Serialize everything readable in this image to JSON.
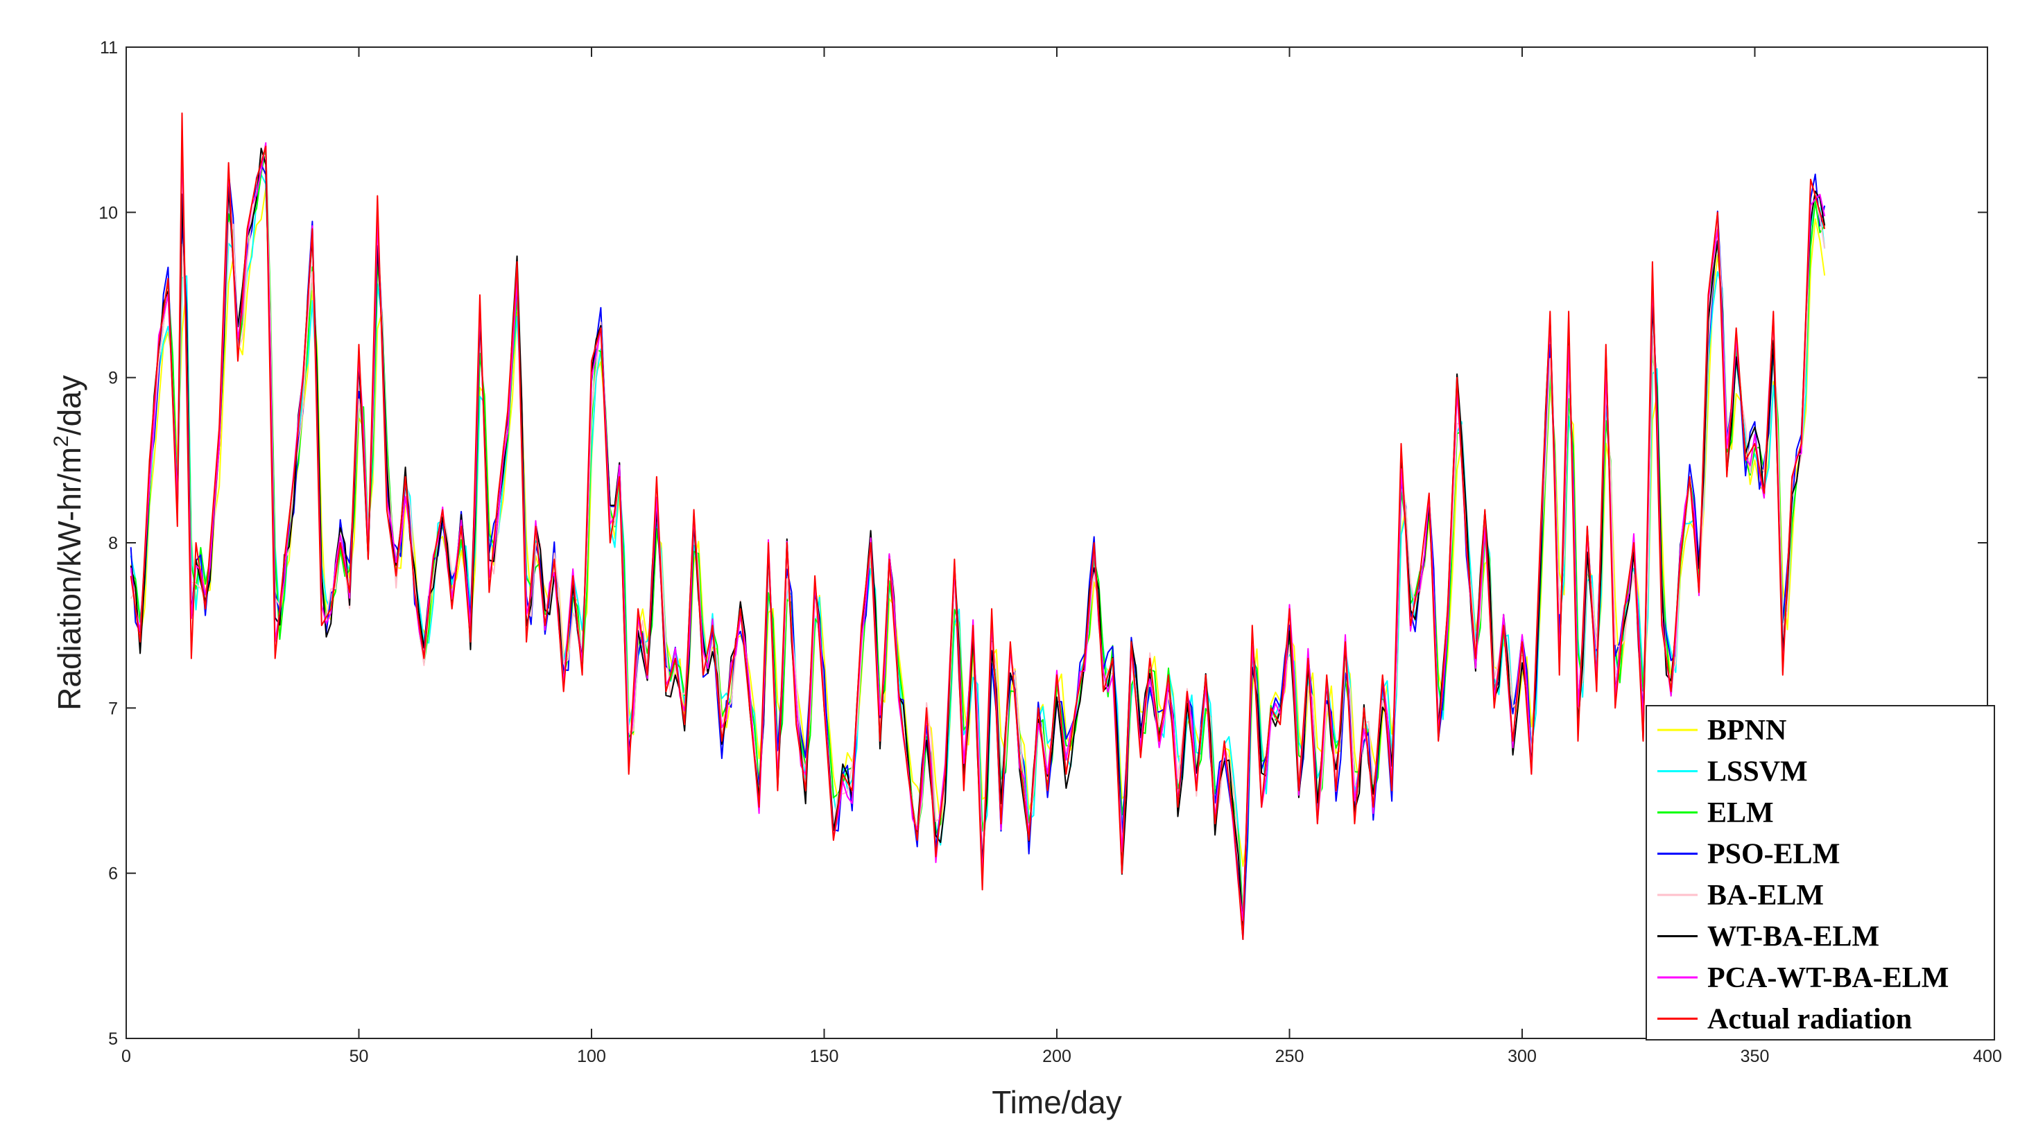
{
  "chart_data": {
    "type": "line",
    "title": "",
    "xlabel": "Time/day",
    "ylabel_main": "Radiation/kW-hr/m",
    "ylabel_sup": "2",
    "ylabel_tail": "/day",
    "xlim": [
      0,
      400
    ],
    "ylim": [
      5,
      11
    ],
    "xticks": [
      0,
      50,
      100,
      150,
      200,
      250,
      300,
      350,
      400
    ],
    "yticks": [
      5,
      6,
      7,
      8,
      9,
      10,
      11
    ],
    "grid": false,
    "legend_position": "bottom-right",
    "x_start": 1,
    "x_end": 365,
    "actual": [
      [
        1,
        7.8
      ],
      [
        3,
        7.4
      ],
      [
        5,
        8.5
      ],
      [
        7,
        9.2
      ],
      [
        9,
        9.6
      ],
      [
        11,
        8.1
      ],
      [
        12,
        10.6
      ],
      [
        14,
        7.3
      ],
      [
        15,
        8.0
      ],
      [
        17,
        7.6
      ],
      [
        20,
        8.7
      ],
      [
        22,
        10.3
      ],
      [
        24,
        9.1
      ],
      [
        26,
        9.9
      ],
      [
        28,
        10.2
      ],
      [
        30,
        10.4
      ],
      [
        32,
        7.3
      ],
      [
        34,
        7.9
      ],
      [
        36,
        8.4
      ],
      [
        38,
        9.0
      ],
      [
        40,
        9.9
      ],
      [
        42,
        7.5
      ],
      [
        44,
        7.6
      ],
      [
        46,
        8.0
      ],
      [
        48,
        7.7
      ],
      [
        50,
        9.2
      ],
      [
        52,
        7.9
      ],
      [
        54,
        10.1
      ],
      [
        56,
        8.2
      ],
      [
        58,
        7.8
      ],
      [
        60,
        8.4
      ],
      [
        62,
        7.7
      ],
      [
        64,
        7.3
      ],
      [
        66,
        7.9
      ],
      [
        68,
        8.2
      ],
      [
        70,
        7.6
      ],
      [
        72,
        8.1
      ],
      [
        74,
        7.4
      ],
      [
        76,
        9.5
      ],
      [
        78,
        7.7
      ],
      [
        80,
        8.3
      ],
      [
        82,
        8.8
      ],
      [
        84,
        9.7
      ],
      [
        86,
        7.4
      ],
      [
        88,
        8.1
      ],
      [
        90,
        7.5
      ],
      [
        92,
        7.9
      ],
      [
        94,
        7.1
      ],
      [
        96,
        7.8
      ],
      [
        98,
        7.2
      ],
      [
        100,
        9.1
      ],
      [
        102,
        9.3
      ],
      [
        104,
        8.0
      ],
      [
        106,
        8.4
      ],
      [
        108,
        6.6
      ],
      [
        110,
        7.6
      ],
      [
        112,
        7.2
      ],
      [
        114,
        8.4
      ],
      [
        116,
        7.1
      ],
      [
        118,
        7.3
      ],
      [
        120,
        6.9
      ],
      [
        122,
        8.2
      ],
      [
        124,
        7.2
      ],
      [
        126,
        7.5
      ],
      [
        128,
        6.8
      ],
      [
        130,
        7.2
      ],
      [
        132,
        7.6
      ],
      [
        134,
        7.0
      ],
      [
        136,
        6.4
      ],
      [
        138,
        8.0
      ],
      [
        140,
        6.5
      ],
      [
        142,
        8.0
      ],
      [
        144,
        6.9
      ],
      [
        146,
        6.5
      ],
      [
        148,
        7.8
      ],
      [
        150,
        7.0
      ],
      [
        152,
        6.2
      ],
      [
        154,
        6.6
      ],
      [
        156,
        6.5
      ],
      [
        158,
        7.5
      ],
      [
        160,
        8.0
      ],
      [
        162,
        6.8
      ],
      [
        164,
        7.9
      ],
      [
        166,
        7.1
      ],
      [
        168,
        6.6
      ],
      [
        170,
        6.2
      ],
      [
        172,
        7.0
      ],
      [
        174,
        6.1
      ],
      [
        176,
        6.6
      ],
      [
        178,
        7.9
      ],
      [
        180,
        6.5
      ],
      [
        182,
        7.5
      ],
      [
        184,
        5.9
      ],
      [
        186,
        7.6
      ],
      [
        188,
        6.3
      ],
      [
        190,
        7.4
      ],
      [
        192,
        6.7
      ],
      [
        194,
        6.2
      ],
      [
        196,
        7.0
      ],
      [
        198,
        6.5
      ],
      [
        200,
        7.2
      ],
      [
        202,
        6.6
      ],
      [
        204,
        7.0
      ],
      [
        206,
        7.3
      ],
      [
        208,
        8.0
      ],
      [
        210,
        7.1
      ],
      [
        212,
        7.3
      ],
      [
        214,
        6.0
      ],
      [
        216,
        7.4
      ],
      [
        218,
        6.7
      ],
      [
        220,
        7.3
      ],
      [
        222,
        6.8
      ],
      [
        224,
        7.2
      ],
      [
        226,
        6.4
      ],
      [
        228,
        7.1
      ],
      [
        230,
        6.5
      ],
      [
        232,
        7.2
      ],
      [
        234,
        6.3
      ],
      [
        236,
        6.8
      ],
      [
        238,
        6.3
      ],
      [
        240,
        5.6
      ],
      [
        242,
        7.5
      ],
      [
        244,
        6.4
      ],
      [
        246,
        7.0
      ],
      [
        248,
        6.9
      ],
      [
        250,
        7.6
      ],
      [
        252,
        6.5
      ],
      [
        254,
        7.3
      ],
      [
        256,
        6.3
      ],
      [
        258,
        7.2
      ],
      [
        260,
        6.5
      ],
      [
        262,
        7.4
      ],
      [
        264,
        6.3
      ],
      [
        266,
        7.0
      ],
      [
        268,
        6.4
      ],
      [
        270,
        7.2
      ],
      [
        272,
        6.5
      ],
      [
        274,
        8.6
      ],
      [
        276,
        7.5
      ],
      [
        278,
        7.8
      ],
      [
        280,
        8.3
      ],
      [
        282,
        6.8
      ],
      [
        284,
        7.6
      ],
      [
        286,
        9.0
      ],
      [
        288,
        8.0
      ],
      [
        290,
        7.3
      ],
      [
        292,
        8.2
      ],
      [
        294,
        7.0
      ],
      [
        296,
        7.5
      ],
      [
        298,
        6.8
      ],
      [
        300,
        7.4
      ],
      [
        302,
        6.6
      ],
      [
        304,
        8.1
      ],
      [
        306,
        9.4
      ],
      [
        308,
        7.2
      ],
      [
        310,
        9.4
      ],
      [
        312,
        6.8
      ],
      [
        314,
        8.1
      ],
      [
        316,
        7.1
      ],
      [
        318,
        9.2
      ],
      [
        320,
        7.0
      ],
      [
        322,
        7.6
      ],
      [
        324,
        8.0
      ],
      [
        326,
        6.8
      ],
      [
        328,
        9.7
      ],
      [
        330,
        7.5
      ],
      [
        332,
        7.1
      ],
      [
        334,
        7.9
      ],
      [
        336,
        8.4
      ],
      [
        338,
        7.7
      ],
      [
        340,
        9.5
      ],
      [
        342,
        10.0
      ],
      [
        344,
        8.4
      ],
      [
        346,
        9.3
      ],
      [
        348,
        8.5
      ],
      [
        350,
        8.6
      ],
      [
        352,
        8.3
      ],
      [
        354,
        9.4
      ],
      [
        356,
        7.2
      ],
      [
        358,
        8.4
      ],
      [
        360,
        8.6
      ],
      [
        362,
        10.2
      ],
      [
        364,
        10.0
      ],
      [
        365,
        9.9
      ]
    ],
    "series": [
      {
        "name": "BPNN",
        "color": "#ffff00",
        "offset": 0.1,
        "smooth": 0.5,
        "seed": 11,
        "noise": 0.12
      },
      {
        "name": "LSSVM",
        "color": "#00ffff",
        "offset": 0.05,
        "smooth": 0.4,
        "seed": 23,
        "noise": 0.16
      },
      {
        "name": "ELM",
        "color": "#00ff00",
        "offset": 0.03,
        "smooth": 0.35,
        "seed": 37,
        "noise": 0.12
      },
      {
        "name": "PSO-ELM",
        "color": "#0000ff",
        "offset": 0.0,
        "smooth": 0.2,
        "seed": 41,
        "noise": 0.18
      },
      {
        "name": "BA-ELM",
        "color": "#ffc0cb",
        "offset": 0.02,
        "smooth": 0.25,
        "seed": 53,
        "noise": 0.14
      },
      {
        "name": "WT-BA-ELM",
        "color": "#000000",
        "offset": 0.0,
        "smooth": 0.15,
        "seed": 67,
        "noise": 0.14
      },
      {
        "name": "PCA-WT-BA-ELM",
        "color": "#ff00ff",
        "offset": 0.0,
        "smooth": 0.1,
        "seed": 79,
        "noise": 0.1
      },
      {
        "name": "Actual radiation",
        "color": "#ff0000",
        "offset": 0.0,
        "smooth": 0.0,
        "seed": 0,
        "noise": 0.0
      }
    ]
  }
}
